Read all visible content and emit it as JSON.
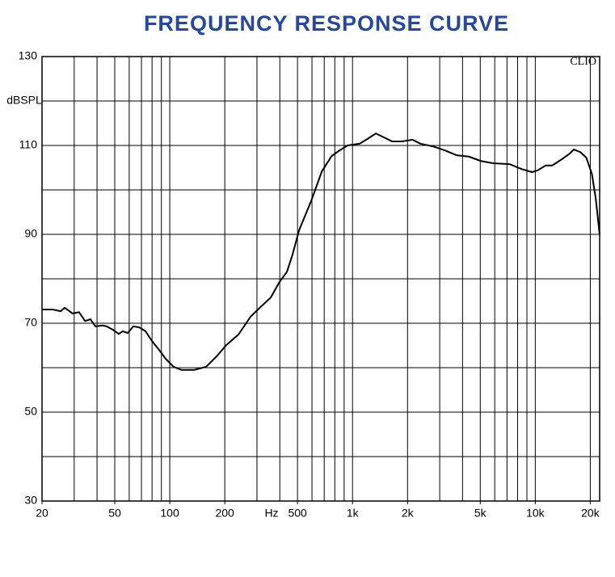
{
  "chart_data": {
    "type": "line",
    "title": "FREQUENCY RESPONSE CURVE",
    "x_label": "Hz",
    "y_label": "dBSPL",
    "annotation": "CLIO",
    "log_x": true,
    "color": "#000000",
    "xlim": [
      20,
      22500
    ],
    "ylim": [
      30,
      130
    ],
    "xticks": [
      20,
      50,
      100,
      200,
      500,
      {
        "value": 1000,
        "label": "1k"
      },
      {
        "value": 2000,
        "label": "2k"
      },
      {
        "value": 5000,
        "label": "5k"
      },
      {
        "value": 10000,
        "label": "10k"
      },
      {
        "value": 20000,
        "label": "20k"
      }
    ],
    "yticks": [
      30,
      50,
      70,
      90,
      110,
      130
    ],
    "xgrid": [
      30,
      40,
      50,
      60,
      70,
      80,
      90,
      100,
      200,
      300,
      400,
      500,
      600,
      700,
      800,
      900,
      1000,
      2000,
      3000,
      4000,
      5000,
      6000,
      7000,
      8000,
      9000,
      10000,
      20000
    ],
    "ygrid": [
      40,
      50,
      60,
      70,
      80,
      90,
      100,
      110,
      120
    ],
    "x": [
      20,
      22.8,
      25.3,
      26.6,
      29.4,
      31.9,
      34.4,
      36.8,
      39.2,
      42.9,
      45.2,
      49,
      52.6,
      55.3,
      58.9,
      63.2,
      67.9,
      73.7,
      79.9,
      86.7,
      95,
      105,
      116,
      136,
      158,
      180,
      204,
      238,
      277,
      313,
      357,
      396,
      438,
      470,
      510,
      595,
      680,
      768,
      850,
      940,
      1095,
      1210,
      1340,
      1490,
      1650,
      1860,
      2130,
      2350,
      2750,
      3200,
      3710,
      4330,
      5040,
      5880,
      7220,
      8420,
      9600,
      10300,
      11400,
      12370,
      13980,
      15450,
      16250,
      17640,
      19000,
      20400,
      21400,
      22500
    ],
    "values": [
      73.1,
      73.1,
      72.7,
      73.5,
      72.2,
      72.5,
      70.5,
      70.9,
      69.3,
      69.5,
      69.3,
      68.5,
      67.6,
      68.2,
      67.8,
      69.3,
      69.1,
      68.2,
      66,
      64.2,
      62,
      60.2,
      59.5,
      59.5,
      60.2,
      62.5,
      65.1,
      67.5,
      71.5,
      73.6,
      75.8,
      79.1,
      81.6,
      85.5,
      90.9,
      97.6,
      104.2,
      107.6,
      108.9,
      110,
      110.4,
      111.5,
      112.7,
      111.8,
      110.9,
      110.9,
      111.3,
      110.4,
      109.8,
      108.9,
      107.8,
      107.5,
      106.5,
      106,
      105.8,
      104.7,
      104,
      104.4,
      105.5,
      105.5,
      106.9,
      108.2,
      109.1,
      108.5,
      107.3,
      103.6,
      98.2,
      90
    ]
  }
}
